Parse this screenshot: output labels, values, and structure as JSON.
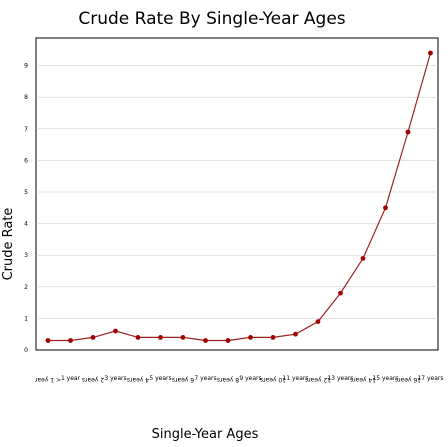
{
  "chart_data": {
    "type": "line",
    "title": "Crude Rate By Single-Year Ages",
    "xlabel": "Single-Year Ages",
    "ylabel": "Crude Rate",
    "ylim": [
      0,
      9.6
    ],
    "yticks": [
      "0",
      "1",
      "2",
      "3",
      "4",
      "5",
      "6",
      "7",
      "8",
      "9"
    ],
    "grid": true,
    "categories": [
      "< 1 year",
      "1 year",
      "2 years",
      "3 years",
      "4 years",
      "5 years",
      "6 years",
      "7 years",
      "8 years",
      "9 years",
      "10 years",
      "11 years",
      "12 years",
      "13 years",
      "14 years",
      "15 years",
      "16 years",
      "17 years"
    ],
    "series": [
      {
        "values": [
          0.3,
          0.3,
          0.4,
          0.6,
          0.4,
          0.4,
          0.4,
          0.3,
          0.3,
          0.4,
          0.4,
          0.5,
          0.9,
          1.8,
          2.9,
          4.5,
          6.9,
          9.4
        ]
      }
    ],
    "colors": {
      "line": "#a02020",
      "point": "#a00000"
    }
  }
}
